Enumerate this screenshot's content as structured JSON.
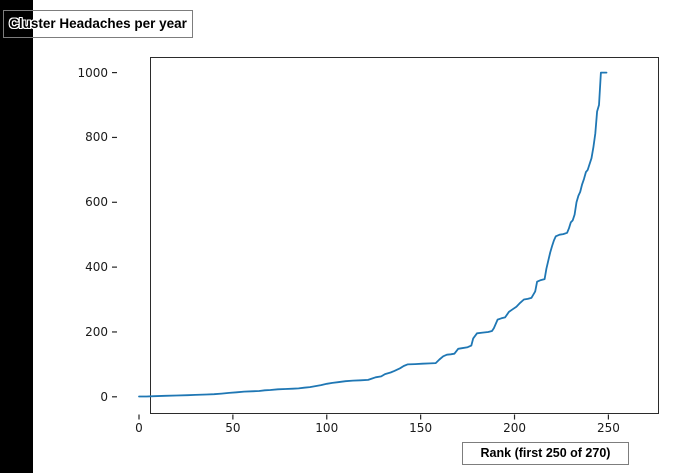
{
  "figure": {
    "background": "#ffffff",
    "stripe_color": "#000000"
  },
  "labels": {
    "y_axis_box": "Cluster Headaches per year",
    "x_axis_box": "Rank (first 250 of 270)"
  },
  "chart_data": {
    "type": "line",
    "title": "",
    "xlabel": "Rank (first 250 of 270)",
    "ylabel": "Cluster Headaches per year",
    "x_ticks": [
      0,
      50,
      100,
      150,
      200,
      250
    ],
    "y_ticks": [
      0,
      200,
      400,
      600,
      800,
      1000
    ],
    "xlim": [
      -12,
      262
    ],
    "ylim": [
      -46,
      1046
    ],
    "grid": false,
    "legend_position": "none",
    "line_color": "#1f77b4",
    "axis_color": "#262626",
    "series": [
      {
        "points": [
          [
            0,
            1
          ],
          [
            4,
            1
          ],
          [
            8,
            2
          ],
          [
            14,
            3
          ],
          [
            20,
            4
          ],
          [
            26,
            5
          ],
          [
            30,
            6
          ],
          [
            36,
            7
          ],
          [
            40,
            8
          ],
          [
            44,
            10
          ],
          [
            48,
            12
          ],
          [
            52,
            14
          ],
          [
            56,
            16
          ],
          [
            60,
            17
          ],
          [
            64,
            18
          ],
          [
            67,
            20
          ],
          [
            70,
            21
          ],
          [
            74,
            23
          ],
          [
            78,
            24
          ],
          [
            82,
            25
          ],
          [
            85,
            26
          ],
          [
            88,
            28
          ],
          [
            91,
            30
          ],
          [
            94,
            33
          ],
          [
            97,
            36
          ],
          [
            100,
            40
          ],
          [
            103,
            43
          ],
          [
            106,
            45
          ],
          [
            110,
            48
          ],
          [
            114,
            50
          ],
          [
            118,
            51
          ],
          [
            122,
            52
          ],
          [
            124,
            56
          ],
          [
            126,
            60
          ],
          [
            129,
            63
          ],
          [
            131,
            70
          ],
          [
            134,
            75
          ],
          [
            136,
            80
          ],
          [
            139,
            88
          ],
          [
            141,
            95
          ],
          [
            143,
            100
          ],
          [
            147,
            101
          ],
          [
            151,
            102
          ],
          [
            155,
            103
          ],
          [
            158,
            104
          ],
          [
            160,
            115
          ],
          [
            162,
            125
          ],
          [
            164,
            130
          ],
          [
            166,
            131
          ],
          [
            168,
            133
          ],
          [
            170,
            148
          ],
          [
            172,
            150
          ],
          [
            175,
            153
          ],
          [
            177,
            158
          ],
          [
            178,
            180
          ],
          [
            180,
            196
          ],
          [
            183,
            198
          ],
          [
            186,
            200
          ],
          [
            188,
            203
          ],
          [
            189,
            212
          ],
          [
            191,
            238
          ],
          [
            193,
            242
          ],
          [
            195,
            245
          ],
          [
            197,
            262
          ],
          [
            199,
            270
          ],
          [
            201,
            278
          ],
          [
            203,
            290
          ],
          [
            205,
            300
          ],
          [
            207,
            302
          ],
          [
            209,
            305
          ],
          [
            211,
            325
          ],
          [
            212,
            355
          ],
          [
            214,
            360
          ],
          [
            216,
            363
          ],
          [
            217,
            395
          ],
          [
            218,
            420
          ],
          [
            219,
            445
          ],
          [
            220,
            465
          ],
          [
            221,
            482
          ],
          [
            222,
            495
          ],
          [
            224,
            500
          ],
          [
            226,
            502
          ],
          [
            228,
            506
          ],
          [
            229,
            520
          ],
          [
            230,
            538
          ],
          [
            231,
            544
          ],
          [
            232,
            562
          ],
          [
            233,
            600
          ],
          [
            234,
            620
          ],
          [
            235,
            632
          ],
          [
            236,
            655
          ],
          [
            237,
            672
          ],
          [
            238,
            693
          ],
          [
            239,
            700
          ],
          [
            240,
            718
          ],
          [
            241,
            736
          ],
          [
            242,
            770
          ],
          [
            243,
            812
          ],
          [
            244,
            880
          ],
          [
            245,
            900
          ],
          [
            246,
            1000
          ],
          [
            247,
            1000
          ],
          [
            248,
            1000
          ],
          [
            249,
            1000
          ]
        ]
      }
    ]
  }
}
